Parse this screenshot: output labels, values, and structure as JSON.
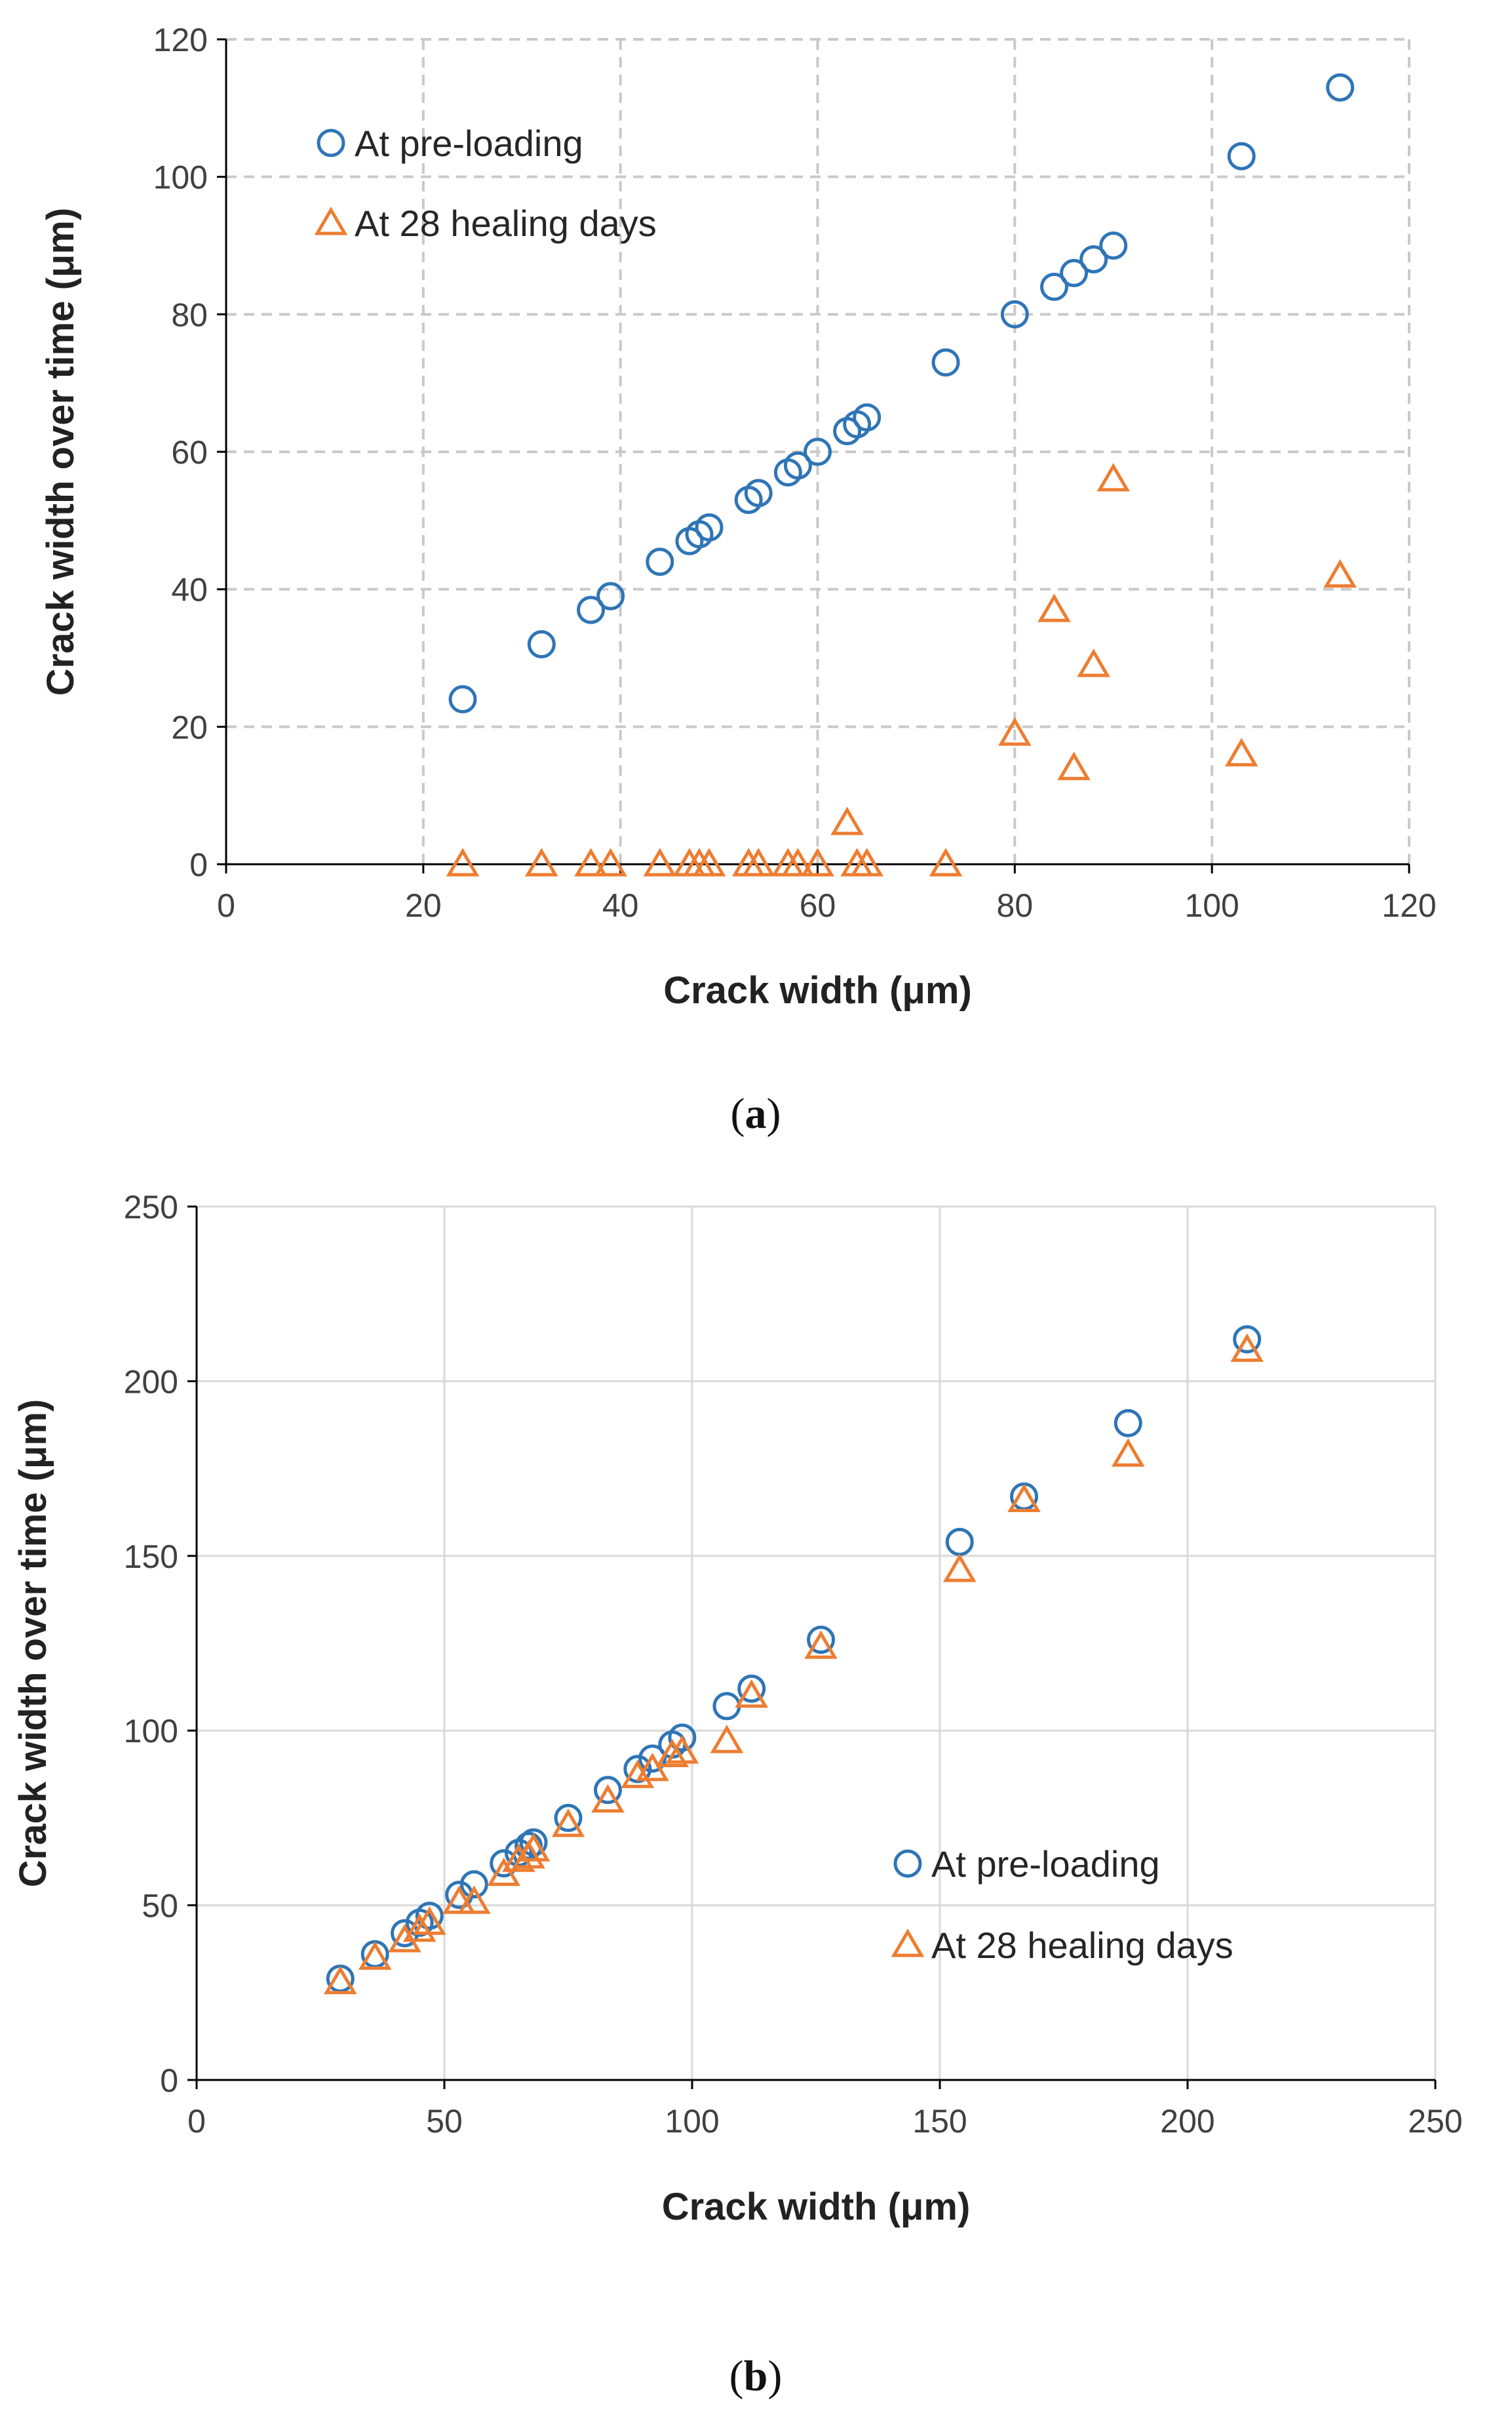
{
  "chart_data": [
    {
      "type": "scatter",
      "panel": "a",
      "caption": "(a)",
      "caption_letter": "a",
      "xlabel": "Crack width (μm)",
      "ylabel": "Crack width over time (μm)",
      "xlim": [
        0,
        120
      ],
      "ylim": [
        0,
        120
      ],
      "xticks": [
        0,
        20,
        40,
        60,
        80,
        100,
        120
      ],
      "yticks": [
        0,
        20,
        40,
        60,
        80,
        100,
        120
      ],
      "grid": "dashed",
      "legend_position": "top-left",
      "series": [
        {
          "name": "At pre-loading",
          "marker": "circle",
          "color": "#2E75B6",
          "points": [
            [
              24,
              24
            ],
            [
              32,
              32
            ],
            [
              37,
              37
            ],
            [
              39,
              39
            ],
            [
              44,
              44
            ],
            [
              47,
              47
            ],
            [
              48,
              48
            ],
            [
              49,
              49
            ],
            [
              53,
              53
            ],
            [
              54,
              54
            ],
            [
              57,
              57
            ],
            [
              58,
              58
            ],
            [
              60,
              60
            ],
            [
              63,
              63
            ],
            [
              64,
              64
            ],
            [
              65,
              65
            ],
            [
              73,
              73
            ],
            [
              80,
              80
            ],
            [
              84,
              84
            ],
            [
              86,
              86
            ],
            [
              88,
              88
            ],
            [
              90,
              90
            ],
            [
              103,
              103
            ],
            [
              113,
              113
            ]
          ]
        },
        {
          "name": "At 28 healing days",
          "marker": "triangle",
          "color": "#ED7D31",
          "points": [
            [
              24,
              0
            ],
            [
              32,
              0
            ],
            [
              37,
              0
            ],
            [
              39,
              0
            ],
            [
              44,
              0
            ],
            [
              47,
              0
            ],
            [
              48,
              0
            ],
            [
              49,
              0
            ],
            [
              53,
              0
            ],
            [
              54,
              0
            ],
            [
              57,
              0
            ],
            [
              58,
              0
            ],
            [
              60,
              0
            ],
            [
              63,
              6
            ],
            [
              64,
              0
            ],
            [
              65,
              0
            ],
            [
              73,
              0
            ],
            [
              80,
              19
            ],
            [
              84,
              37
            ],
            [
              86,
              14
            ],
            [
              88,
              29
            ],
            [
              90,
              56
            ],
            [
              103,
              16
            ],
            [
              113,
              42
            ]
          ]
        }
      ]
    },
    {
      "type": "scatter",
      "panel": "b",
      "caption": "(b)",
      "caption_letter": "b",
      "xlabel": "Crack width (μm)",
      "ylabel": "Crack width over time (μm)",
      "xlim": [
        0,
        250
      ],
      "ylim": [
        0,
        250
      ],
      "xticks": [
        0,
        50,
        100,
        150,
        200,
        250
      ],
      "yticks": [
        0,
        50,
        100,
        150,
        200,
        250
      ],
      "grid": "solid",
      "legend_position": "bottom-right",
      "series": [
        {
          "name": "At pre-loading",
          "marker": "circle",
          "color": "#2E75B6",
          "points": [
            [
              29,
              29
            ],
            [
              36,
              36
            ],
            [
              42,
              42
            ],
            [
              45,
              45
            ],
            [
              47,
              47
            ],
            [
              53,
              53
            ],
            [
              56,
              56
            ],
            [
              62,
              62
            ],
            [
              65,
              65
            ],
            [
              67,
              67
            ],
            [
              68,
              68
            ],
            [
              75,
              75
            ],
            [
              83,
              83
            ],
            [
              89,
              89
            ],
            [
              92,
              92
            ],
            [
              96,
              96
            ],
            [
              98,
              98
            ],
            [
              107,
              107
            ],
            [
              112,
              112
            ],
            [
              126,
              126
            ],
            [
              154,
              154
            ],
            [
              167,
              167
            ],
            [
              188,
              188
            ],
            [
              212,
              212
            ]
          ]
        },
        {
          "name": "At 28 healing days",
          "marker": "triangle",
          "color": "#ED7D31",
          "points": [
            [
              29,
              28
            ],
            [
              36,
              35
            ],
            [
              42,
              40
            ],
            [
              45,
              43
            ],
            [
              47,
              45
            ],
            [
              53,
              51
            ],
            [
              56,
              51
            ],
            [
              62,
              59
            ],
            [
              65,
              63
            ],
            [
              67,
              64
            ],
            [
              68,
              66
            ],
            [
              75,
              73
            ],
            [
              83,
              80
            ],
            [
              89,
              87
            ],
            [
              92,
              89
            ],
            [
              96,
              93
            ],
            [
              98,
              94
            ],
            [
              107,
              97
            ],
            [
              112,
              110
            ],
            [
              126,
              124
            ],
            [
              154,
              146
            ],
            [
              167,
              166
            ],
            [
              188,
              179
            ],
            [
              212,
              209
            ]
          ]
        }
      ]
    }
  ]
}
